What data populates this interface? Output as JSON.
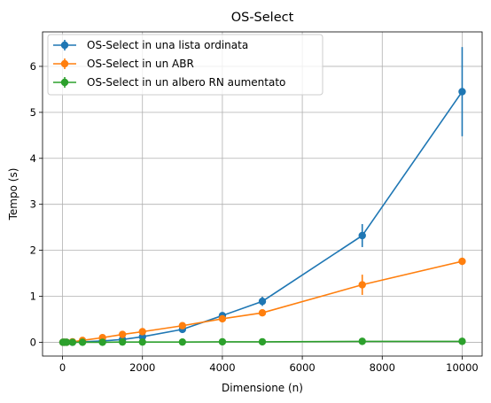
{
  "chart_data": {
    "type": "line",
    "title": "OS-Select",
    "xlabel": "Dimensione (n)",
    "ylabel": "Tempo (s)",
    "xlim": [
      -500,
      10500
    ],
    "ylim": [
      -0.3,
      6.75
    ],
    "xticks": [
      0,
      2000,
      4000,
      6000,
      8000,
      10000
    ],
    "yticks": [
      0,
      1,
      2,
      3,
      4,
      5,
      6
    ],
    "grid": true,
    "legend_position": "top-left",
    "x": [
      10,
      50,
      100,
      250,
      500,
      1000,
      1500,
      2000,
      3000,
      4000,
      5000,
      7500,
      10000
    ],
    "series": [
      {
        "name": "OS-Select in una lista ordinata",
        "color": "#1f77b4",
        "values": [
          0.0,
          0.0,
          0.0,
          0.0,
          0.01,
          0.03,
          0.06,
          0.12,
          0.28,
          0.58,
          0.89,
          2.32,
          5.45
        ],
        "errors": [
          0.0,
          0.0,
          0.0,
          0.0,
          0.0,
          0.01,
          0.01,
          0.02,
          0.03,
          0.05,
          0.1,
          0.25,
          0.97
        ]
      },
      {
        "name": "OS-Select in un ABR",
        "color": "#ff7f0e",
        "values": [
          0.0,
          0.0,
          0.0,
          0.01,
          0.04,
          0.1,
          0.17,
          0.23,
          0.36,
          0.51,
          0.64,
          1.25,
          1.76
        ],
        "errors": [
          0.0,
          0.0,
          0.0,
          0.0,
          0.01,
          0.01,
          0.02,
          0.02,
          0.03,
          0.04,
          0.05,
          0.22,
          0.08
        ]
      },
      {
        "name": "OS-Select in un albero RN aumentato",
        "color": "#2ca02c",
        "values": [
          0.0,
          0.0,
          0.0,
          0.0,
          0.0,
          0.0,
          0.005,
          0.005,
          0.005,
          0.01,
          0.01,
          0.02,
          0.02
        ],
        "errors": [
          0.0,
          0.0,
          0.0,
          0.0,
          0.0,
          0.0,
          0.0,
          0.0,
          0.0,
          0.0,
          0.0,
          0.01,
          0.01
        ]
      }
    ]
  }
}
